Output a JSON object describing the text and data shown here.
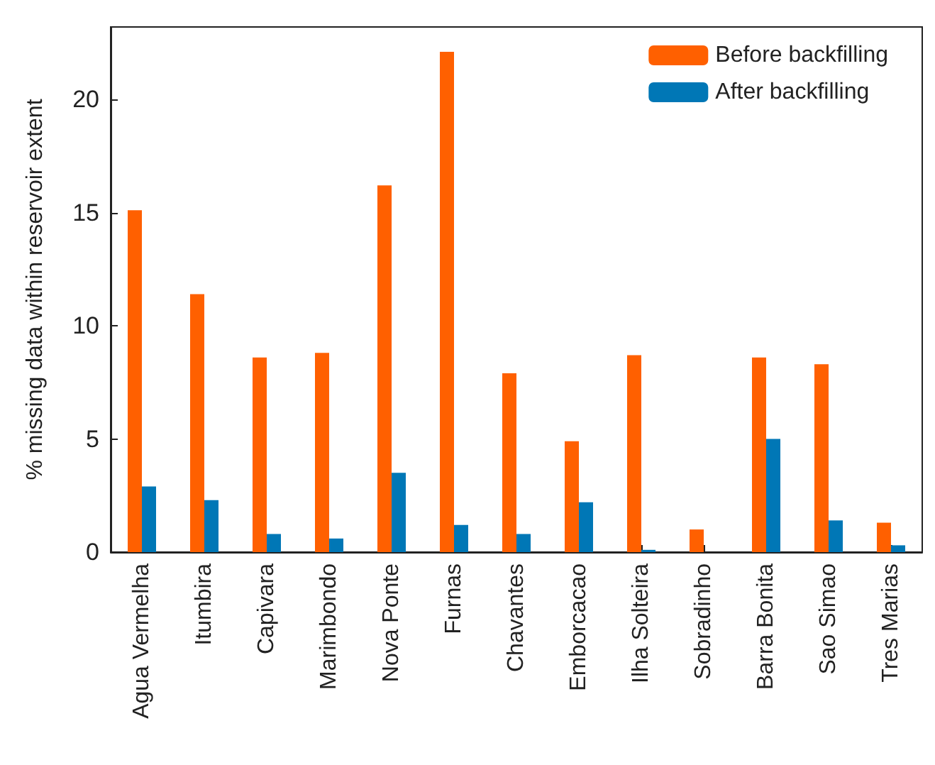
{
  "chart_data": {
    "type": "bar",
    "ylabel": "% missing data within reservoir extent",
    "categories": [
      "Agua Vermelha",
      "Itumbira",
      "Capivara",
      "Marimbondo",
      "Nova Ponte",
      "Furnas",
      "Chavantes",
      "Emborcacao",
      "Ilha Solteira",
      "Sobradinho",
      "Barra Bonita",
      "Sao Simao",
      "Tres Marias"
    ],
    "series": [
      {
        "name": "Before backfilling",
        "color": "#ff6000",
        "values": [
          15.1,
          11.4,
          8.6,
          8.8,
          16.2,
          22.1,
          7.9,
          4.9,
          8.7,
          1.0,
          8.6,
          8.3,
          1.3
        ]
      },
      {
        "name": "After backfilling",
        "color": "#0077b6",
        "values": [
          2.9,
          2.3,
          0.8,
          0.6,
          3.5,
          1.2,
          0.8,
          2.2,
          0.1,
          0,
          5.0,
          1.4,
          0.3
        ]
      }
    ],
    "ylim": [
      0,
      23.2
    ],
    "yticks": [
      0,
      5,
      10,
      15,
      20
    ],
    "grid": false,
    "legend": "top right"
  }
}
